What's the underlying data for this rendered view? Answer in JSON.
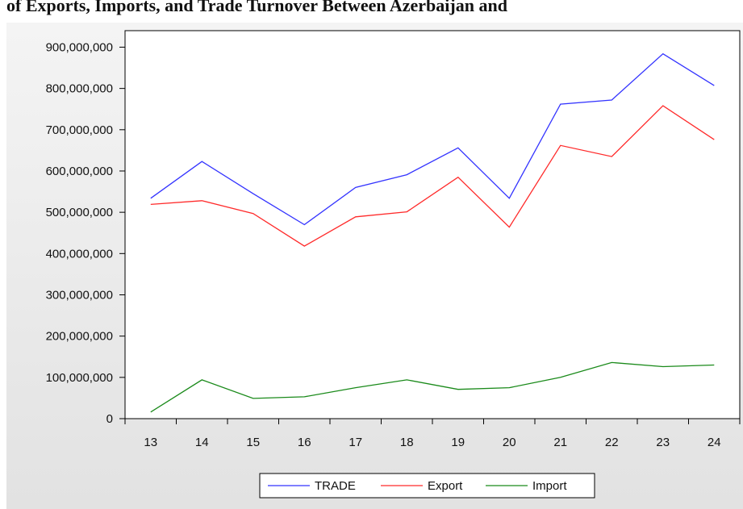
{
  "chart_data": {
    "type": "line",
    "title": "of Exports, Imports, and Trade Turnover Between Azerbaijan and",
    "categories": [
      "13",
      "14",
      "15",
      "16",
      "17",
      "18",
      "19",
      "20",
      "21",
      "22",
      "23",
      "24"
    ],
    "series": [
      {
        "name": "TRADE",
        "color": "#3333ff",
        "values": [
          534000000,
          623000000,
          545000000,
          470000000,
          560000000,
          591000000,
          656000000,
          534000000,
          762000000,
          772000000,
          884000000,
          807000000
        ]
      },
      {
        "name": "Export",
        "color": "#ff2a2a",
        "values": [
          519000000,
          528000000,
          497000000,
          418000000,
          489000000,
          501000000,
          585000000,
          464000000,
          662000000,
          635000000,
          758000000,
          676000000
        ]
      },
      {
        "name": "Import",
        "color": "#1a8a1a",
        "values": [
          16000000,
          94000000,
          49000000,
          53000000,
          75000000,
          94000000,
          71000000,
          75000000,
          100000000,
          136000000,
          126000000,
          130000000
        ]
      }
    ],
    "ylim": [
      0,
      940000000
    ],
    "yticks": [
      0,
      {
        "value": 100000000,
        "label": "100,000,000"
      },
      {
        "value": 200000000,
        "label": "200,000,000"
      },
      {
        "value": 300000000,
        "label": "300,000,000"
      },
      {
        "value": 400000000,
        "label": "400,000,000"
      },
      {
        "value": 500000000,
        "label": "500,000,000"
      },
      {
        "value": 600000000,
        "label": "600,000,000"
      },
      {
        "value": 700000000,
        "label": "700,000,000"
      },
      {
        "value": 800000000,
        "label": "800,000,000"
      },
      {
        "value": 900000000,
        "label": "900,000,000"
      }
    ],
    "legend": "bottom"
  }
}
